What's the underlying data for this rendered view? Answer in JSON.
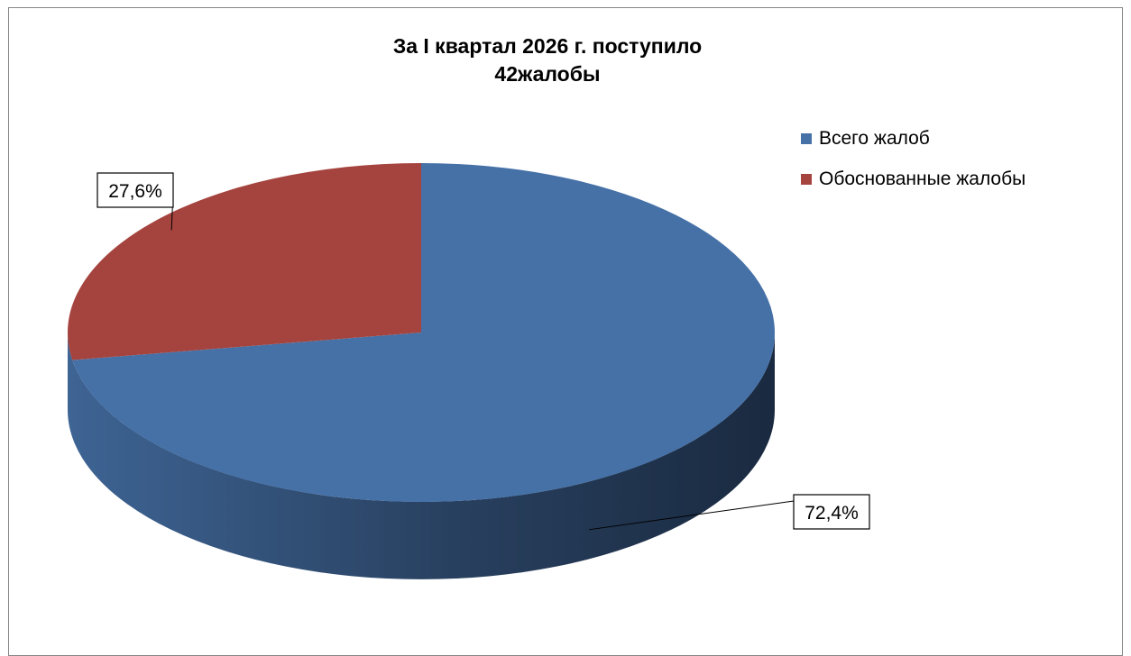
{
  "chart_data": {
    "type": "pie",
    "title_line1": "За I квартал 2026 г. поступило",
    "title_line2": "42жалобы",
    "categories": [
      "Всего жалоб",
      "Обоснованные жалобы"
    ],
    "values": [
      72.4,
      27.6
    ],
    "data_labels": [
      "72,4%",
      "27,6%"
    ],
    "colors": [
      "#4671A7",
      "#A5443F"
    ],
    "legend_position": "right"
  }
}
